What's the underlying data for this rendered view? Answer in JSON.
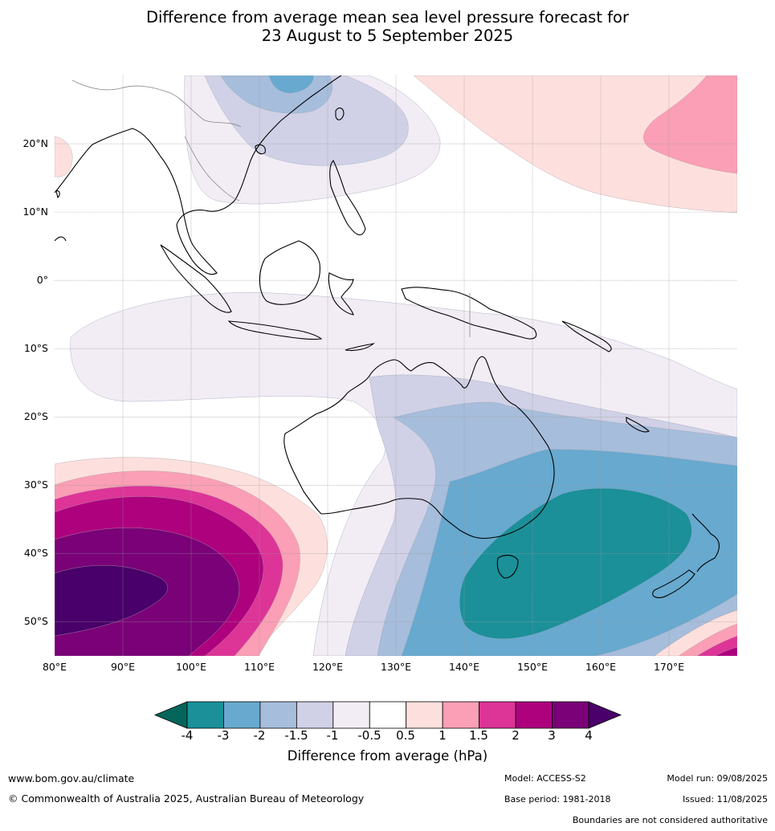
{
  "title_line1": "Difference from average mean sea level pressure forecast for",
  "title_line2": "23 August to 5 September 2025",
  "map": {
    "extent_lon": [
      80,
      180
    ],
    "extent_lat": [
      -55,
      30
    ],
    "lat_labels": [
      "20°N",
      "10°N",
      "0°",
      "10°S",
      "20°S",
      "30°S",
      "40°S",
      "50°S"
    ],
    "lon_labels": [
      "80°E",
      "90°E",
      "100°E",
      "110°E",
      "120°E",
      "130°E",
      "140°E",
      "150°E",
      "160°E",
      "170°E"
    ],
    "gridlines": true,
    "anomaly_regions": [
      {
        "name": "strong-positive-anomaly-southern-indian-ocean",
        "center": [
          92,
          -45
        ],
        "value": 4
      },
      {
        "name": "negative-anomaly-tasman-sea",
        "center": [
          152,
          -40
        ],
        "value": -3
      },
      {
        "name": "positive-anomaly-north-pacific",
        "center": [
          170,
          22
        ],
        "value": 1.5
      },
      {
        "name": "negative-anomaly-south-china-sea",
        "center": [
          115,
          26
        ],
        "value": -1.5
      }
    ]
  },
  "colorbar": {
    "levels": [
      "-4",
      "-3",
      "-2",
      "-1.5",
      "-1",
      "-0.5",
      "0.5",
      "1",
      "1.5",
      "2",
      "3",
      "4"
    ],
    "colors": [
      "#04665b",
      "#1b9099",
      "#67a9cf",
      "#a6bddb",
      "#d0d1e6",
      "#f2ecf5",
      "#ffffff",
      "#fde0dd",
      "#fa9fb5",
      "#dd3497",
      "#ae017e",
      "#7a0177",
      "#49006a"
    ],
    "label": "Difference from average (hPa)"
  },
  "footer": {
    "url": "www.bom.gov.au/climate",
    "copyright": "© Commonwealth of Australia 2025, Australian Bureau of Meteorology",
    "model": "Model: ACCESS-S2",
    "base_period": "Base period: 1981-2018",
    "model_run": "Model run: 09/08/2025",
    "issued": "Issued: 11/08/2025",
    "disclaimer": "Boundaries are not considered authoritative"
  }
}
